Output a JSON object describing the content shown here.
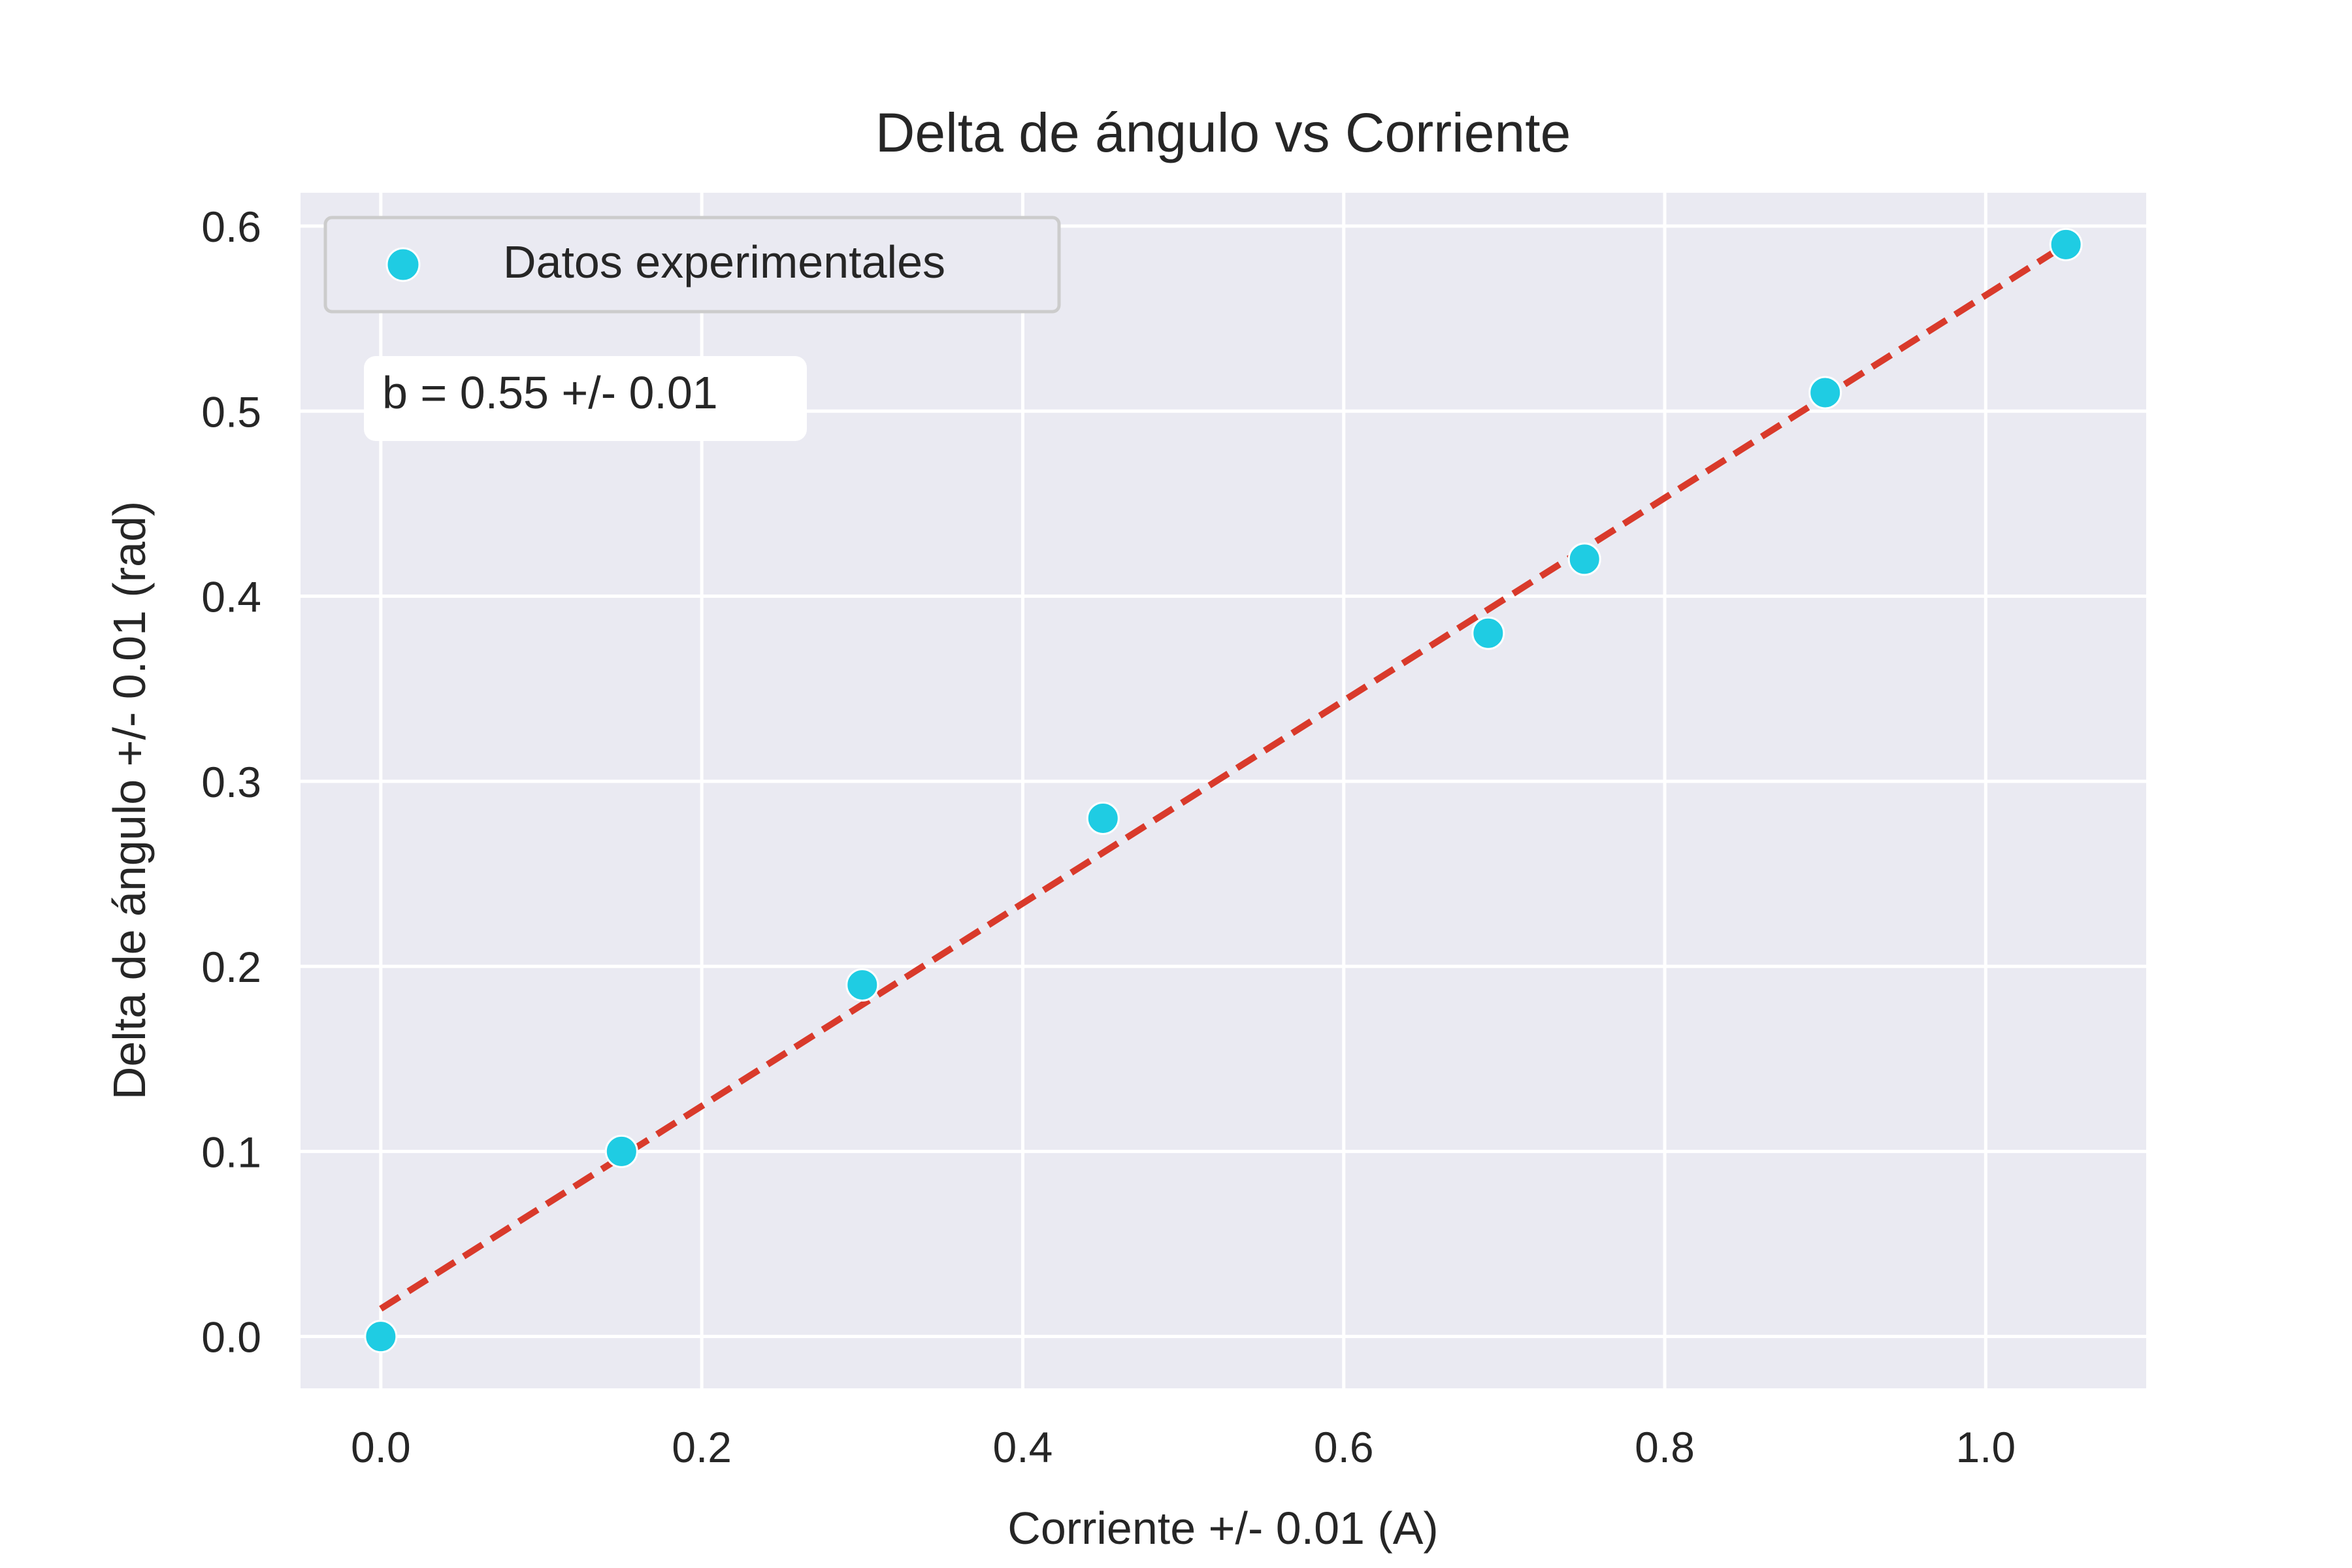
{
  "chart_data": {
    "type": "scatter",
    "title": "Delta de ángulo vs Corriente",
    "xlabel": "Corriente +/- 0.01 (A)",
    "ylabel": "Delta de ángulo +/- 0.01 (rad)",
    "xlim": [
      -0.05,
      1.1
    ],
    "ylim": [
      -0.028,
      0.618
    ],
    "xticks": [
      0.0,
      0.2,
      0.4,
      0.6,
      0.8,
      1.0
    ],
    "xtick_labels": [
      "0.0",
      "0.2",
      "0.4",
      "0.6",
      "0.8",
      "1.0"
    ],
    "yticks": [
      0.0,
      0.1,
      0.2,
      0.3,
      0.4,
      0.5,
      0.6
    ],
    "ytick_labels": [
      "0.0",
      "0.1",
      "0.2",
      "0.3",
      "0.4",
      "0.5",
      "0.6"
    ],
    "grid": true,
    "legend_position": "top-left",
    "series": [
      {
        "name": "Datos experimentales",
        "kind": "scatter",
        "color": "#1fcce3",
        "x": [
          0.0,
          0.15,
          0.3,
          0.45,
          0.69,
          0.75,
          0.9,
          1.05
        ],
        "y": [
          0.0,
          0.1,
          0.19,
          0.28,
          0.38,
          0.42,
          0.51,
          0.59
        ]
      },
      {
        "kind": "line",
        "style": "dashed",
        "color": "#d93a2b",
        "x": [
          0.0,
          1.05
        ],
        "y": [
          0.015,
          0.59
        ]
      }
    ],
    "annotation": "b = 0.55 +/- 0.01",
    "colors": {
      "plot_background": "#eaeaf2",
      "grid": "#ffffff",
      "text": "#262626"
    }
  }
}
